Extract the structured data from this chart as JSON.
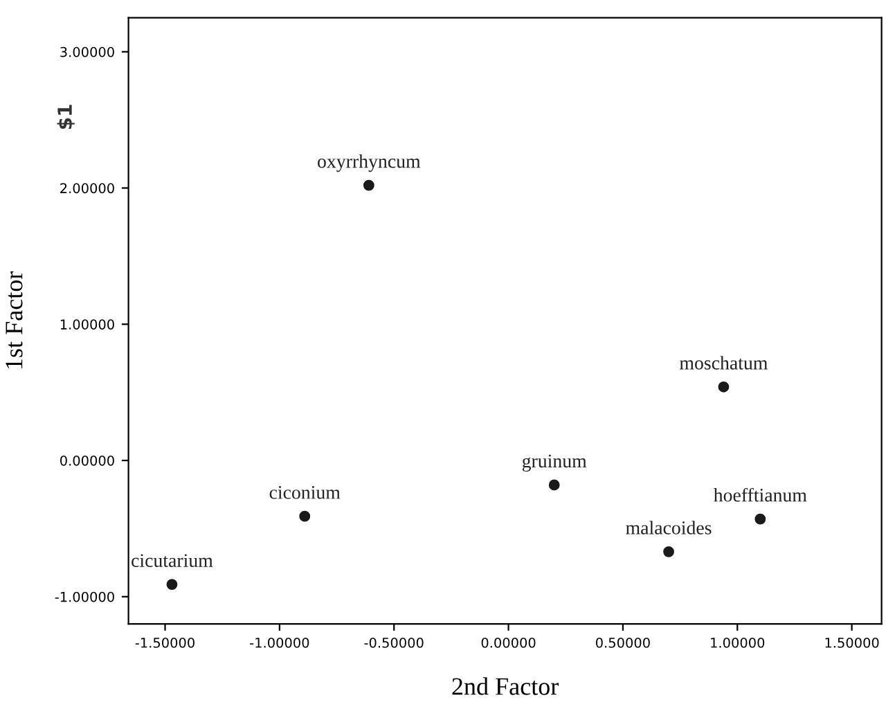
{
  "chart_data": {
    "type": "scatter",
    "xlabel": "2nd Factor",
    "ylabel": "1st Factor",
    "x": [
      -0.61,
      0.94,
      0.2,
      1.1,
      0.7,
      -0.89,
      -1.47
    ],
    "series": [
      {
        "color": "#1a1a1a",
        "values": [
          2.02,
          0.54,
          -0.18,
          -0.43,
          -0.67,
          -0.41,
          -0.91
        ]
      }
    ],
    "marker": "circle",
    "annotations": [
      "$1",
      {
        "text": "oxyrrhyncum",
        "x": -0.61,
        "y": 2.02
      },
      {
        "text": "moschatum",
        "x": 0.94,
        "y": 0.54
      },
      {
        "text": "gruinum",
        "x": 0.2,
        "y": -0.18
      },
      {
        "text": "hoefftianum",
        "x": 1.1,
        "y": -0.43
      },
      {
        "text": "malacoides",
        "x": 0.7,
        "y": -0.67
      },
      {
        "text": "ciconium",
        "x": -0.89,
        "y": -0.41
      },
      {
        "text": "cicutarium",
        "x": -1.47,
        "y": -0.91
      }
    ],
    "xlim": [
      -1.66,
      1.63
    ],
    "ylim": [
      -1.2,
      3.25
    ],
    "xticks": [
      {
        "value": -1.5,
        "label": "-1.50000"
      },
      {
        "value": -1.0,
        "label": "-1.00000"
      },
      {
        "value": -0.5,
        "label": "-0.50000"
      },
      {
        "value": 0,
        "label": "0.00000"
      },
      {
        "value": 0.5,
        "label": "0.50000"
      },
      {
        "value": 1.0,
        "label": "1.00000"
      },
      {
        "value": 1.5,
        "label": "1.50000"
      }
    ],
    "yticks": [
      {
        "value": -1.0,
        "label": "-1.00000"
      },
      {
        "value": 0,
        "label": "0.00000"
      },
      {
        "value": 1.0,
        "label": "1.00000"
      },
      {
        "value": 2.0,
        "label": "2.00000"
      },
      {
        "value": 3.0,
        "label": "3.00000"
      }
    ],
    "grid": false,
    "legend": false
  }
}
